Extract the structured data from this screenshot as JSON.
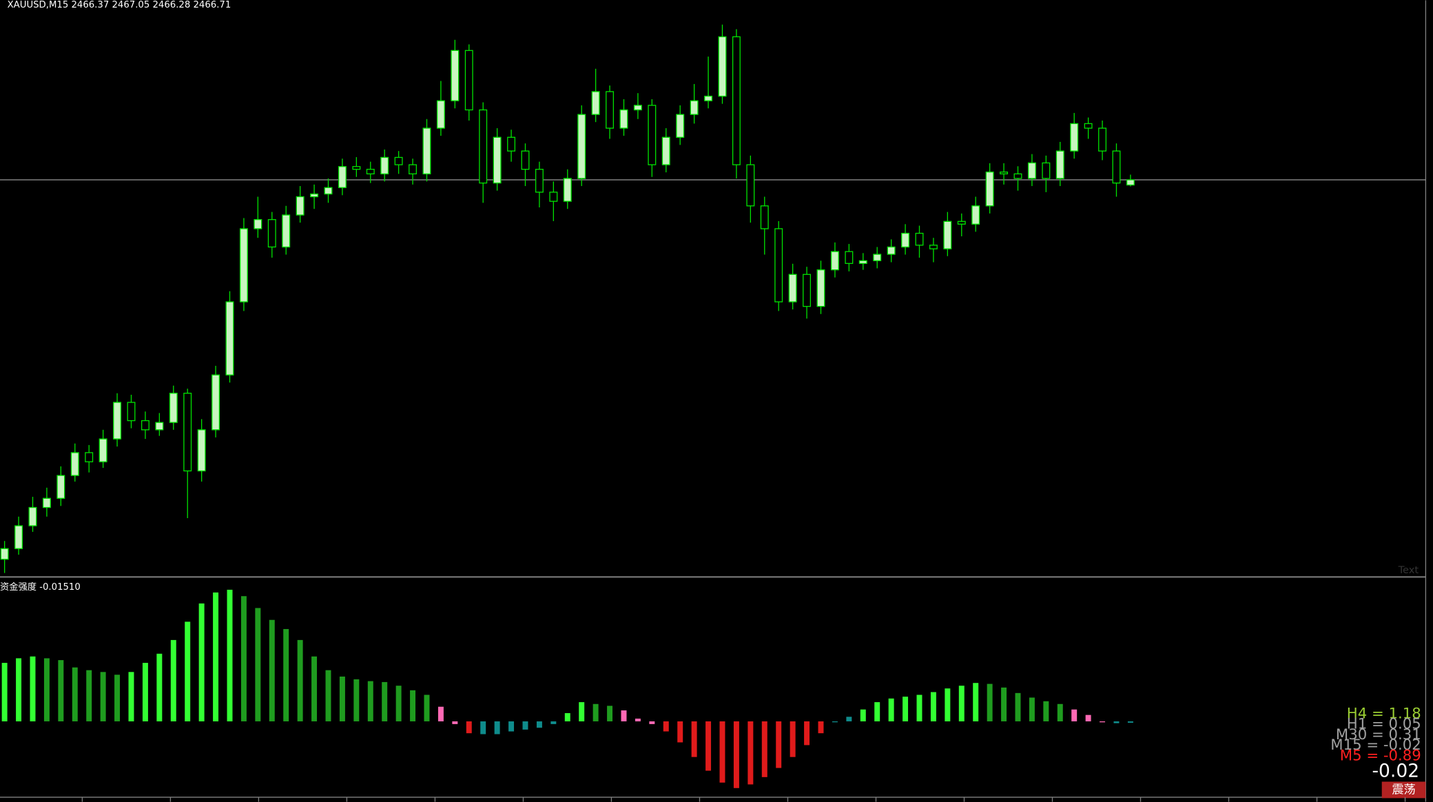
{
  "chart_data": [
    {
      "type": "candlestick",
      "title": "XAUUSD,M15  2466.37 2467.05 2466.28 2466.71",
      "open": [
        2441.8,
        2442.5,
        2444.0,
        2445.2,
        2445.8,
        2447.3,
        2448.8,
        2448.2,
        2449.7,
        2452.1,
        2450.9,
        2450.3,
        2450.78,
        2452.7,
        2447.6,
        2450.3,
        2453.9,
        2458.7,
        2463.5,
        2464.1,
        2462.3,
        2464.4,
        2465.6,
        2465.78,
        2466.2,
        2467.58,
        2467.4,
        2467.1,
        2468.18,
        2467.7,
        2467.1,
        2470.1,
        2471.9,
        2475.2,
        2471.3,
        2466.5,
        2469.5,
        2468.6,
        2467.4,
        2465.9,
        2465.3,
        2466.8,
        2471.0,
        2472.5,
        2470.1,
        2471.3,
        2471.6,
        2467.7,
        2469.5,
        2471.0,
        2471.9,
        2472.2,
        2476.1,
        2467.7,
        2465.0,
        2463.5,
        2458.7,
        2460.5,
        2458.4,
        2460.8,
        2462.0,
        2461.22,
        2461.4,
        2461.82,
        2462.3,
        2463.2,
        2462.42,
        2462.18,
        2463.98,
        2463.8,
        2465.0,
        2467.22,
        2467.1,
        2466.8,
        2467.82,
        2466.8,
        2468.6,
        2470.4,
        2470.1,
        2468.6,
        2466.37
      ],
      "high": [
        2443.0,
        2444.6,
        2445.9,
        2446.5,
        2447.9,
        2449.4,
        2449.3,
        2450.3,
        2452.7,
        2452.6,
        2451.5,
        2451.4,
        2453.2,
        2453.0,
        2451.0,
        2454.5,
        2459.4,
        2464.2,
        2465.6,
        2464.6,
        2465.0,
        2466.3,
        2466.4,
        2466.8,
        2468.1,
        2468.2,
        2467.9,
        2468.7,
        2468.6,
        2468.1,
        2470.7,
        2473.2,
        2475.9,
        2475.6,
        2471.8,
        2470.1,
        2470.0,
        2469.1,
        2467.9,
        2466.6,
        2467.4,
        2471.6,
        2474.0,
        2472.9,
        2472.0,
        2472.4,
        2472.0,
        2470.1,
        2471.6,
        2473.0,
        2474.8,
        2476.9,
        2476.6,
        2468.3,
        2465.6,
        2464.0,
        2461.2,
        2461.0,
        2461.4,
        2462.6,
        2462.5,
        2461.9,
        2462.3,
        2462.8,
        2463.8,
        2463.7,
        2462.9,
        2464.6,
        2464.5,
        2465.6,
        2467.8,
        2467.8,
        2467.6,
        2468.4,
        2468.3,
        2469.2,
        2471.1,
        2470.8,
        2470.6,
        2469.1,
        2467.05
      ],
      "low": [
        2440.9,
        2442.1,
        2443.6,
        2444.6,
        2445.3,
        2446.9,
        2447.5,
        2447.8,
        2449.2,
        2450.4,
        2449.7,
        2449.9,
        2450.3,
        2444.5,
        2446.9,
        2449.8,
        2453.4,
        2458.1,
        2462.9,
        2461.6,
        2461.8,
        2463.9,
        2464.8,
        2465.2,
        2465.7,
        2466.9,
        2466.5,
        2466.6,
        2467.1,
        2466.4,
        2466.6,
        2469.6,
        2471.4,
        2470.6,
        2465.2,
        2466.0,
        2467.9,
        2466.3,
        2464.9,
        2464.0,
        2464.8,
        2466.3,
        2470.5,
        2469.4,
        2469.6,
        2470.7,
        2466.9,
        2467.2,
        2469.0,
        2470.4,
        2471.4,
        2471.7,
        2466.8,
        2463.9,
        2461.8,
        2458.1,
        2458.2,
        2457.6,
        2457.9,
        2460.3,
        2460.7,
        2460.8,
        2460.9,
        2461.3,
        2461.8,
        2461.6,
        2461.3,
        2461.7,
        2463.0,
        2463.3,
        2464.5,
        2466.4,
        2466.0,
        2466.3,
        2465.9,
        2466.3,
        2468.1,
        2469.4,
        2468.0,
        2465.6,
        2466.28
      ],
      "close": [
        2442.5,
        2444.0,
        2445.2,
        2445.8,
        2447.3,
        2448.8,
        2448.2,
        2449.7,
        2452.1,
        2450.9,
        2450.3,
        2450.78,
        2452.7,
        2447.6,
        2450.3,
        2453.9,
        2458.7,
        2463.5,
        2464.1,
        2462.3,
        2464.4,
        2465.6,
        2465.78,
        2466.2,
        2467.58,
        2467.4,
        2467.1,
        2468.18,
        2467.7,
        2467.1,
        2470.1,
        2471.9,
        2475.2,
        2471.3,
        2466.5,
        2469.5,
        2468.6,
        2467.4,
        2465.9,
        2465.3,
        2466.8,
        2471.0,
        2472.5,
        2470.1,
        2471.3,
        2471.6,
        2467.7,
        2469.5,
        2471.0,
        2471.9,
        2472.2,
        2476.1,
        2467.7,
        2465.0,
        2463.5,
        2458.7,
        2460.5,
        2458.4,
        2460.8,
        2462.0,
        2461.22,
        2461.4,
        2461.82,
        2462.3,
        2463.2,
        2462.42,
        2462.18,
        2463.98,
        2463.8,
        2465.0,
        2467.22,
        2467.1,
        2466.8,
        2467.82,
        2466.8,
        2468.6,
        2470.4,
        2470.1,
        2468.6,
        2466.5,
        2466.71
      ],
      "price_line": 2466.71,
      "ylim": [
        2440.7,
        2478.5
      ],
      "up_color": "#c8f5c0",
      "down_color": "#000000",
      "wick_color": "#00e000",
      "watermark": "Text"
    },
    {
      "type": "bar",
      "title": "资金强度 -0.01510",
      "values": [
        0.64,
        0.69,
        0.71,
        0.69,
        0.67,
        0.59,
        0.56,
        0.54,
        0.51,
        0.54,
        0.64,
        0.74,
        0.89,
        1.09,
        1.29,
        1.41,
        1.44,
        1.37,
        1.24,
        1.11,
        1.01,
        0.89,
        0.71,
        0.56,
        0.49,
        0.46,
        0.44,
        0.43,
        0.39,
        0.34,
        0.29,
        0.16,
        -0.03,
        -0.13,
        -0.14,
        -0.14,
        -0.11,
        -0.09,
        -0.07,
        -0.03,
        0.09,
        0.21,
        0.19,
        0.17,
        0.12,
        0.03,
        -0.03,
        -0.11,
        -0.23,
        -0.39,
        -0.54,
        -0.67,
        -0.73,
        -0.69,
        -0.61,
        -0.51,
        -0.39,
        -0.26,
        -0.13,
        -0.01,
        0.05,
        0.13,
        0.21,
        0.25,
        0.27,
        0.29,
        0.32,
        0.36,
        0.39,
        0.42,
        0.41,
        0.37,
        0.31,
        0.26,
        0.22,
        0.19,
        0.13,
        0.07,
        -0.01,
        -0.02,
        -0.0151
      ],
      "colors": [
        "#33ff33",
        "#33ff33",
        "#33ff33",
        "#1f9c1f",
        "#1f9c1f",
        "#1f9c1f",
        "#1f9c1f",
        "#1f9c1f",
        "#1f9c1f",
        "#33ff33",
        "#33ff33",
        "#33ff33",
        "#33ff33",
        "#33ff33",
        "#33ff33",
        "#33ff33",
        "#33ff33",
        "#1f9c1f",
        "#1f9c1f",
        "#1f9c1f",
        "#1f9c1f",
        "#1f9c1f",
        "#1f9c1f",
        "#1f9c1f",
        "#1f9c1f",
        "#1f9c1f",
        "#1f9c1f",
        "#1f9c1f",
        "#1f9c1f",
        "#1f9c1f",
        "#1f9c1f",
        "#ff69b4",
        "#ff69b4",
        "#e01b1b",
        "#0f8c8c",
        "#0f8c8c",
        "#0f8c8c",
        "#0f8c8c",
        "#0f8c8c",
        "#0f8c8c",
        "#33ff33",
        "#33ff33",
        "#1f9c1f",
        "#1f9c1f",
        "#ff69b4",
        "#ff69b4",
        "#ff69b4",
        "#e01b1b",
        "#e01b1b",
        "#e01b1b",
        "#e01b1b",
        "#e01b1b",
        "#e01b1b",
        "#e01b1b",
        "#e01b1b",
        "#e01b1b",
        "#e01b1b",
        "#e01b1b",
        "#e01b1b",
        "#0f8c8c",
        "#0f8c8c",
        "#33ff33",
        "#33ff33",
        "#33ff33",
        "#33ff33",
        "#33ff33",
        "#33ff33",
        "#33ff33",
        "#33ff33",
        "#33ff33",
        "#1f9c1f",
        "#1f9c1f",
        "#1f9c1f",
        "#1f9c1f",
        "#1f9c1f",
        "#1f9c1f",
        "#ff69b4",
        "#ff69b4",
        "#ff69b4",
        "#0f8c8c",
        "#0f8c8c"
      ],
      "ylim": [
        -0.81,
        1.56
      ]
    }
  ],
  "panel": {
    "labels": [
      {
        "text": "H4 = 1.18",
        "color": "#9acd32"
      },
      {
        "text": "H1 = 0.05",
        "color": "#a0a0a0"
      },
      {
        "text": "M30 = 0.31",
        "color": "#a0a0a0"
      },
      {
        "text": "M15 = -0.02",
        "color": "#a0a0a0"
      },
      {
        "text": "M5 = -0.89",
        "color": "#ff2020"
      }
    ],
    "current": "-0.02",
    "status": "震荡"
  }
}
